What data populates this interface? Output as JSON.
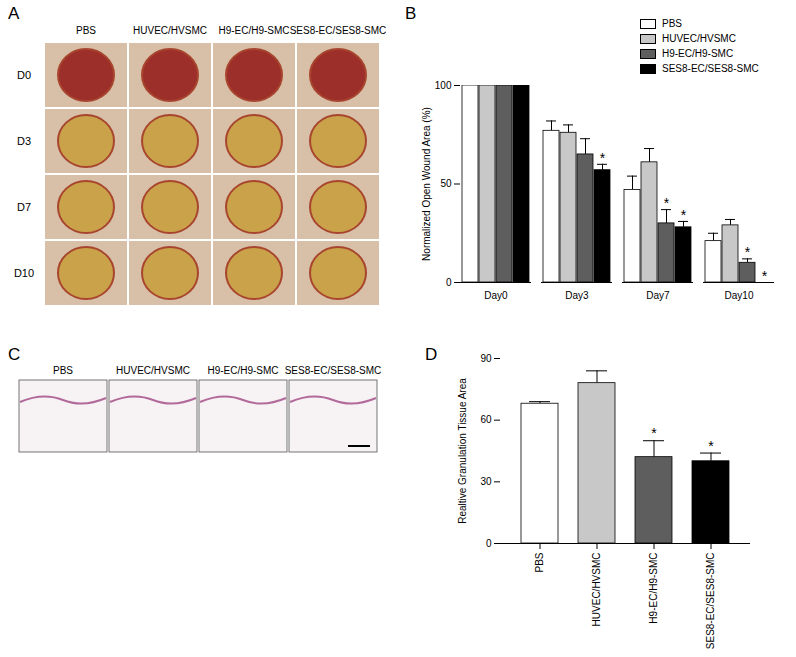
{
  "image_panels": [
    {
      "panel": "A",
      "type": "photo_grid",
      "columns": [
        "PBS",
        "HUVEC/HVSMC",
        "H9-EC/H9-SMC",
        "SES8-EC/SES8-SMC"
      ],
      "rows": [
        "D0",
        "D3",
        "D7",
        "D10"
      ]
    },
    {
      "panel": "C",
      "type": "histology_row",
      "columns": [
        "PBS",
        "HUVEC/HVSMC",
        "H9-EC/H9-SMC",
        "SES8-EC/SES8-SMC"
      ]
    }
  ],
  "chart_data": [
    {
      "panel": "B",
      "type": "bar",
      "y_label": "Normalized Open Wound Area (%)",
      "categories": [
        "Day0",
        "Day3",
        "Day7",
        "Day10"
      ],
      "ylim": [
        0,
        100
      ],
      "yticks": [
        0,
        50,
        100
      ],
      "legend": "top-right",
      "series": [
        {
          "name": "PBS",
          "color": "#ffffff",
          "values": [
            100,
            77,
            47,
            21
          ],
          "errors": [
            0,
            5,
            7,
            4
          ],
          "annotations": [
            null,
            null,
            null,
            null
          ]
        },
        {
          "name": "HUVEC/HVSMC",
          "color": "#c8c8c8",
          "values": [
            100,
            76,
            61,
            29
          ],
          "errors": [
            0,
            4,
            7,
            3
          ],
          "annotations": [
            null,
            null,
            null,
            null
          ]
        },
        {
          "name": "H9-EC/H9-SMC",
          "color": "#5e5e5e",
          "values": [
            100,
            65,
            30,
            10
          ],
          "errors": [
            0,
            8,
            7,
            2
          ],
          "annotations": [
            null,
            null,
            "*",
            "*"
          ]
        },
        {
          "name": "SES8-EC/SES8-SMC",
          "color": "#000000",
          "values": [
            100,
            57,
            28,
            0
          ],
          "errors": [
            0,
            3,
            3,
            0
          ],
          "annotations": [
            null,
            "*",
            "*",
            "*"
          ]
        }
      ]
    },
    {
      "panel": "D",
      "type": "bar",
      "y_label": "Realtive Granulation Tissue Area",
      "categories": [
        "PBS",
        "HUVEC/HVSMC",
        "H9-EC/H9-SMC",
        "SES8-EC/SES8-SMC"
      ],
      "values": [
        68,
        78,
        42,
        40
      ],
      "errors": [
        1,
        6,
        8,
        4
      ],
      "colors": [
        "#ffffff",
        "#c8c8c8",
        "#5e5e5e",
        "#000000"
      ],
      "annotations": [
        null,
        null,
        "*",
        "*"
      ],
      "ylim": [
        0,
        90
      ],
      "yticks": [
        0,
        30,
        60,
        90
      ]
    }
  ]
}
